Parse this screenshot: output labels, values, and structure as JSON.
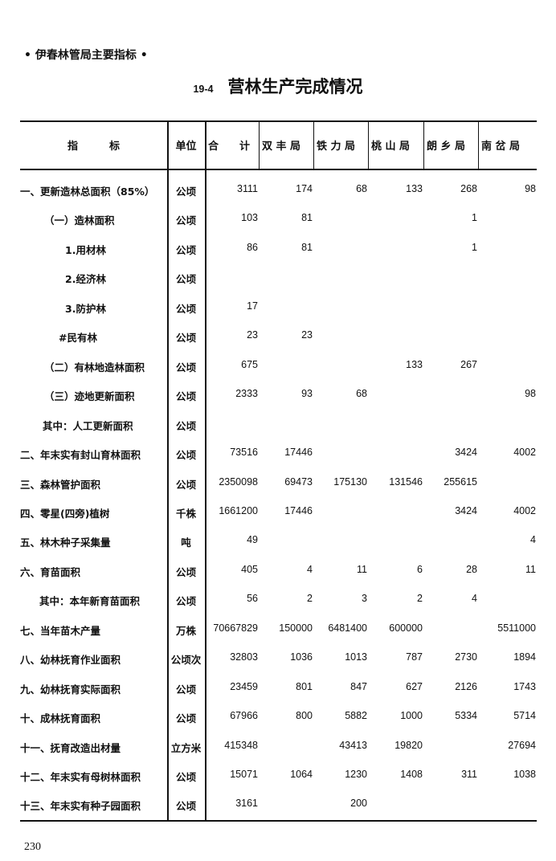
{
  "running_head": "• 伊春林管局主要指标 •",
  "title": {
    "number": "19-4",
    "text": "营林生产完成情况"
  },
  "table": {
    "headers": [
      "指　　　标",
      "单位",
      "合　　计",
      "双 丰 局",
      "铁 力 局",
      "桃 山 局",
      "朗 乡 局",
      "南 岔 局"
    ],
    "rows": [
      {
        "label": "一、更新造林总面积（85%）",
        "unit": "公顷",
        "values": [
          "3111",
          "174",
          "68",
          "133",
          "268",
          "98"
        ]
      },
      {
        "label": "（一）造林面积",
        "unit": "公顷",
        "values": [
          "103",
          "81",
          "",
          "",
          "1",
          ""
        ]
      },
      {
        "label": "1.用材林",
        "unit": "公顷",
        "values": [
          "86",
          "81",
          "",
          "",
          "1",
          ""
        ]
      },
      {
        "label": "2.经济林",
        "unit": "公顷",
        "values": [
          "",
          "",
          "",
          "",
          "",
          ""
        ]
      },
      {
        "label": "3.防护林",
        "unit": "公顷",
        "values": [
          "17",
          "",
          "",
          "",
          "",
          ""
        ]
      },
      {
        "label": "#民有林",
        "unit": "公顷",
        "values": [
          "23",
          "23",
          "",
          "",
          "",
          ""
        ]
      },
      {
        "label": "（二）有林地造林面积",
        "unit": "公顷",
        "values": [
          "675",
          "",
          "",
          "133",
          "267",
          ""
        ]
      },
      {
        "label": "（三）迹地更新面积",
        "unit": "公顷",
        "values": [
          "2333",
          "93",
          "68",
          "",
          "",
          "98"
        ]
      },
      {
        "label": "其中：人工更新面积",
        "unit": "公顷",
        "values": [
          "",
          "",
          "",
          "",
          "",
          ""
        ]
      },
      {
        "label": "二、年末实有封山育林面积",
        "unit": "公顷",
        "values": [
          "73516",
          "17446",
          "",
          "",
          "3424",
          "4002"
        ]
      },
      {
        "label": "三、森林管护面积",
        "unit": "公顷",
        "values": [
          "2350098",
          "69473",
          "175130",
          "131546",
          "255615",
          ""
        ]
      },
      {
        "label": "四、零星(四旁)植树",
        "unit": "千株",
        "values": [
          "1661200",
          "17446",
          "",
          "",
          "3424",
          "4002"
        ]
      },
      {
        "label": "五、林木种子采集量",
        "unit": "吨",
        "values": [
          "49",
          "",
          "",
          "",
          "",
          "4"
        ]
      },
      {
        "label": "六、育苗面积",
        "unit": "公顷",
        "values": [
          "405",
          "4",
          "11",
          "6",
          "28",
          "11"
        ]
      },
      {
        "label": "其中：本年新育苗面积",
        "unit": "公顷",
        "values": [
          "56",
          "2",
          "3",
          "2",
          "4",
          ""
        ]
      },
      {
        "label": "七、当年苗木产量",
        "unit": "万株",
        "values": [
          "70667829",
          "150000",
          "6481400",
          "600000",
          "",
          "5511000"
        ]
      },
      {
        "label": "八、幼林抚育作业面积",
        "unit": "公顷次",
        "values": [
          "32803",
          "1036",
          "1013",
          "787",
          "2730",
          "1894"
        ]
      },
      {
        "label": "九、幼林抚育实际面积",
        "unit": "公顷",
        "values": [
          "23459",
          "801",
          "847",
          "627",
          "2126",
          "1743"
        ]
      },
      {
        "label": "十、成林抚育面积",
        "unit": "公顷",
        "values": [
          "67966",
          "800",
          "5882",
          "1000",
          "5334",
          "5714"
        ]
      },
      {
        "label": "十一、抚育改造出材量",
        "unit": "立方米",
        "values": [
          "415348",
          "",
          "43413",
          "19820",
          "",
          "27694"
        ]
      },
      {
        "label": "十二、年末实有母树林面积",
        "unit": "公顷",
        "values": [
          "15071",
          "1064",
          "1230",
          "1408",
          "311",
          "1038"
        ]
      },
      {
        "label": "十三、年末实有种子园面积",
        "unit": "公顷",
        "values": [
          "3161",
          "",
          "200",
          "",
          "",
          ""
        ]
      }
    ]
  },
  "page_number": "230"
}
